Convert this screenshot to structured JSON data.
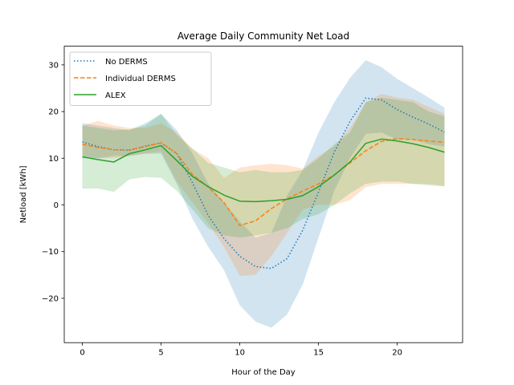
{
  "chart_data": {
    "type": "line",
    "title": "Average Daily Community Net Load",
    "xlabel": "Hour of the Day",
    "ylabel": "Netload [kWh]",
    "xlim": [
      -1.15,
      24.15
    ],
    "ylim": [
      -29.5,
      34
    ],
    "xticks": [
      0,
      5,
      10,
      15,
      20
    ],
    "yticks": [
      -20,
      -10,
      0,
      10,
      20,
      30
    ],
    "x": [
      0,
      1,
      2,
      3,
      4,
      5,
      6,
      7,
      8,
      9,
      10,
      11,
      12,
      13,
      14,
      15,
      16,
      17,
      18,
      19,
      20,
      21,
      22,
      23
    ],
    "legend_position": "upper-left",
    "series": [
      {
        "name": "No DERMS",
        "color": "#1f77b4",
        "linestyle": "dotted",
        "values": [
          13.5,
          12.5,
          11.8,
          11.7,
          12.6,
          13.3,
          11.0,
          4.7,
          -2.3,
          -7.2,
          -11.0,
          -13.2,
          -13.6,
          -11.5,
          -5.4,
          2.8,
          11.3,
          17.9,
          22.9,
          22.5,
          20.4,
          18.8,
          17.3,
          15.6
        ],
        "band_lower": [
          10.0,
          10.0,
          10.5,
          10.5,
          11.0,
          11.0,
          4.5,
          -3.0,
          -9.0,
          -14.0,
          -21.5,
          -25.0,
          -26.3,
          -23.5,
          -17.0,
          -7.0,
          3.0,
          10.0,
          15.2,
          15.5,
          14.0,
          14.0,
          13.0,
          12.5
        ],
        "band_upper": [
          17.5,
          17.0,
          16.5,
          16.0,
          17.5,
          19.5,
          16.0,
          11.0,
          4.5,
          0.5,
          -3.5,
          -7.0,
          -6.0,
          2.0,
          7.5,
          15.5,
          22.0,
          27.2,
          31.0,
          29.5,
          27.0,
          25.0,
          23.0,
          20.8
        ]
      },
      {
        "name": "Individual DERMS",
        "color": "#ff7f0e",
        "linestyle": "dashed",
        "values": [
          13.0,
          12.3,
          11.8,
          11.8,
          12.5,
          13.3,
          11.0,
          6.5,
          3.8,
          0.5,
          -4.4,
          -3.4,
          -0.8,
          1.3,
          3.0,
          4.5,
          6.4,
          9.0,
          11.6,
          13.6,
          14.2,
          14.0,
          13.7,
          13.4
        ],
        "band_lower": [
          10.5,
          10.0,
          10.0,
          10.5,
          11.0,
          11.5,
          5.0,
          0.5,
          -4.0,
          -9.0,
          -15.2,
          -15.0,
          -11.0,
          -6.0,
          -1.0,
          0.0,
          0.0,
          1.0,
          3.8,
          4.5,
          4.5,
          4.5,
          4.5,
          4.0
        ],
        "band_upper": [
          17.0,
          18.0,
          17.0,
          16.5,
          16.5,
          17.5,
          15.5,
          12.0,
          10.0,
          5.8,
          8.0,
          8.5,
          8.8,
          8.5,
          7.8,
          10.5,
          12.5,
          16.5,
          22.0,
          23.8,
          23.0,
          22.5,
          21.0,
          19.5
        ]
      },
      {
        "name": "ALEX",
        "color": "#2ca02c",
        "linestyle": "solid",
        "values": [
          10.3,
          9.7,
          9.2,
          11.0,
          11.8,
          12.7,
          9.5,
          6.1,
          3.9,
          2.1,
          0.8,
          0.7,
          0.9,
          1.2,
          2.0,
          3.9,
          6.4,
          9.2,
          13.2,
          14.1,
          13.7,
          13.1,
          12.3,
          11.3
        ],
        "band_lower": [
          3.5,
          3.5,
          2.8,
          5.5,
          6.0,
          5.8,
          3.0,
          -1.0,
          -5.0,
          -6.5,
          -7.0,
          -6.5,
          -6.0,
          -5.0,
          -3.0,
          -2.0,
          0.0,
          2.5,
          4.5,
          5.0,
          5.0,
          4.5,
          4.2,
          4.0
        ],
        "band_upper": [
          17.0,
          16.5,
          16.0,
          16.2,
          17.0,
          19.5,
          15.0,
          12.0,
          9.0,
          8.0,
          7.0,
          7.5,
          7.0,
          7.0,
          7.5,
          10.0,
          13.0,
          15.5,
          22.0,
          23.0,
          22.5,
          22.0,
          20.0,
          19.0
        ]
      }
    ]
  }
}
